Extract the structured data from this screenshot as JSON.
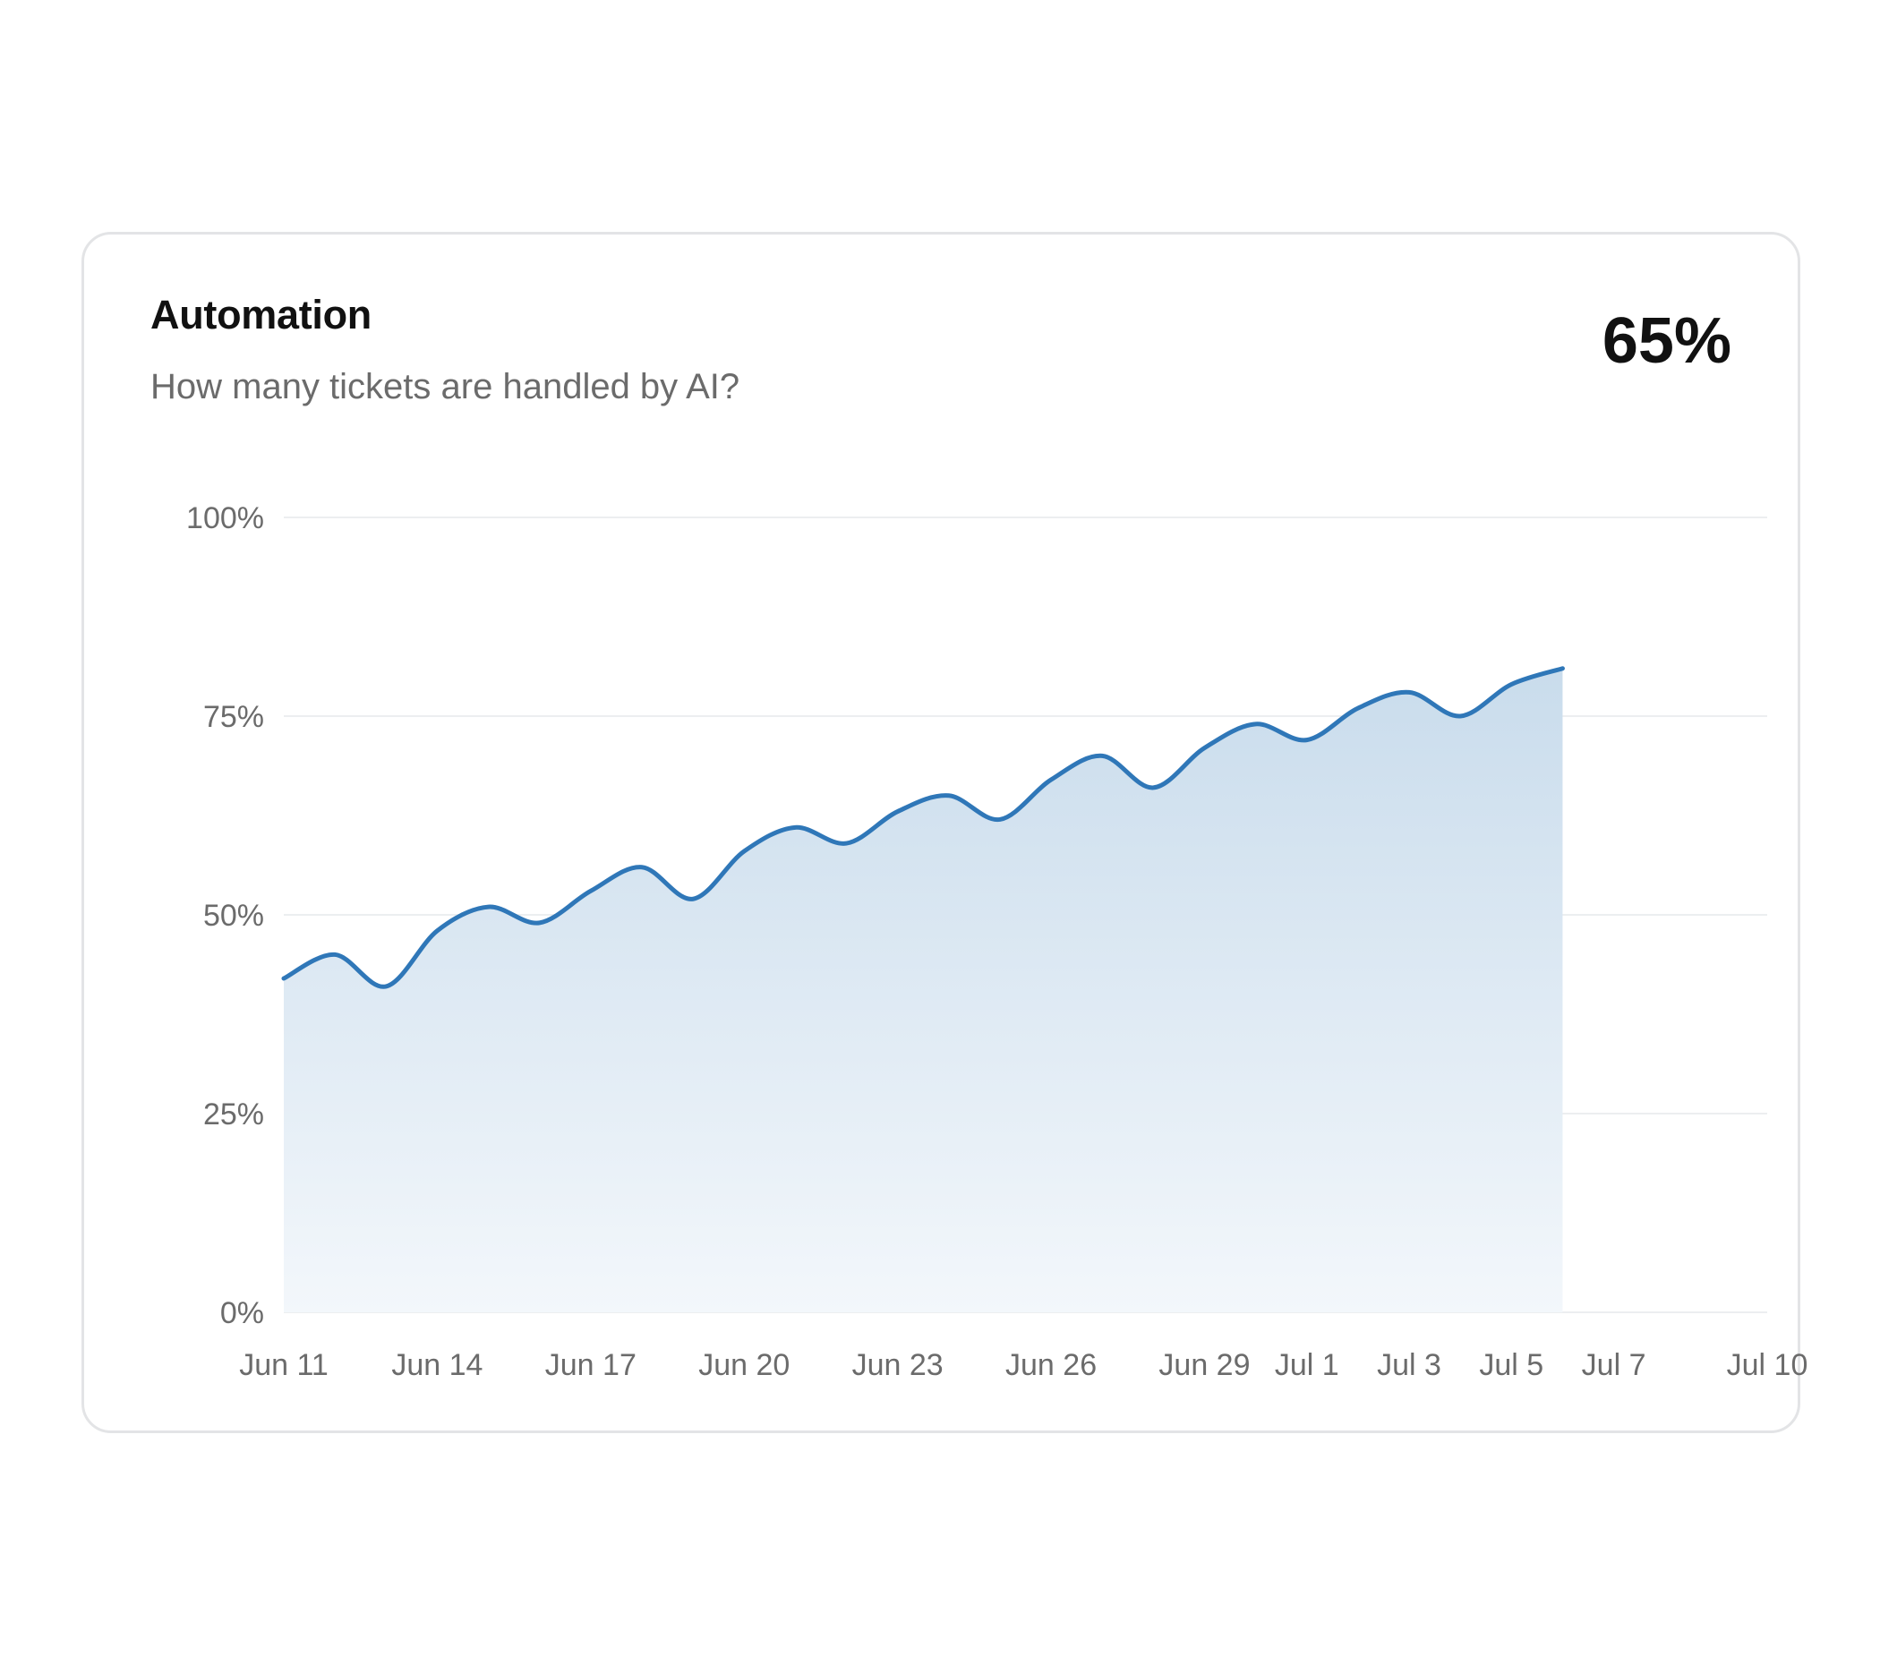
{
  "card": {
    "title": "Automation",
    "subtitle": "How many tickets are handled by AI?",
    "kpi_value": "65%"
  },
  "colors": {
    "line": "#2f77b8",
    "area_top": "#c9dcec",
    "area_bottom": "#f3f7fb",
    "grid": "#eceef0",
    "axis_text": "#6b6b6b"
  },
  "chart_data": {
    "type": "area",
    "title": "Automation",
    "subtitle": "How many tickets are handled by AI?",
    "xlabel": "",
    "ylabel": "",
    "x_ticks": [
      "Jun 11",
      "Jun 14",
      "Jun 17",
      "Jun 20",
      "Jun 23",
      "Jun 26",
      "Jun 29",
      "Jul 1",
      "Jul 3",
      "Jul 5",
      "Jul 7",
      "Jul 10"
    ],
    "y_ticks": [
      "0%",
      "25%",
      "50%",
      "75%",
      "100%"
    ],
    "ylim": [
      0,
      100
    ],
    "grid": true,
    "legend": "none",
    "series": [
      {
        "x": [
          "Jun 11",
          "Jun 12",
          "Jun 13",
          "Jun 14",
          "Jun 15",
          "Jun 16",
          "Jun 17",
          "Jun 18",
          "Jun 19",
          "Jun 20",
          "Jun 21",
          "Jun 22",
          "Jun 23",
          "Jun 24",
          "Jun 25",
          "Jun 26",
          "Jun 27",
          "Jun 28",
          "Jun 29",
          "Jun 30",
          "Jul 1",
          "Jul 2",
          "Jul 3",
          "Jul 4",
          "Jul 5",
          "Jul 6"
        ],
        "values": [
          42,
          45,
          41,
          48,
          51,
          49,
          53,
          56,
          52,
          58,
          61,
          59,
          63,
          65,
          62,
          67,
          70,
          66,
          71,
          74,
          72,
          76,
          78,
          75,
          79,
          81
        ]
      }
    ]
  }
}
